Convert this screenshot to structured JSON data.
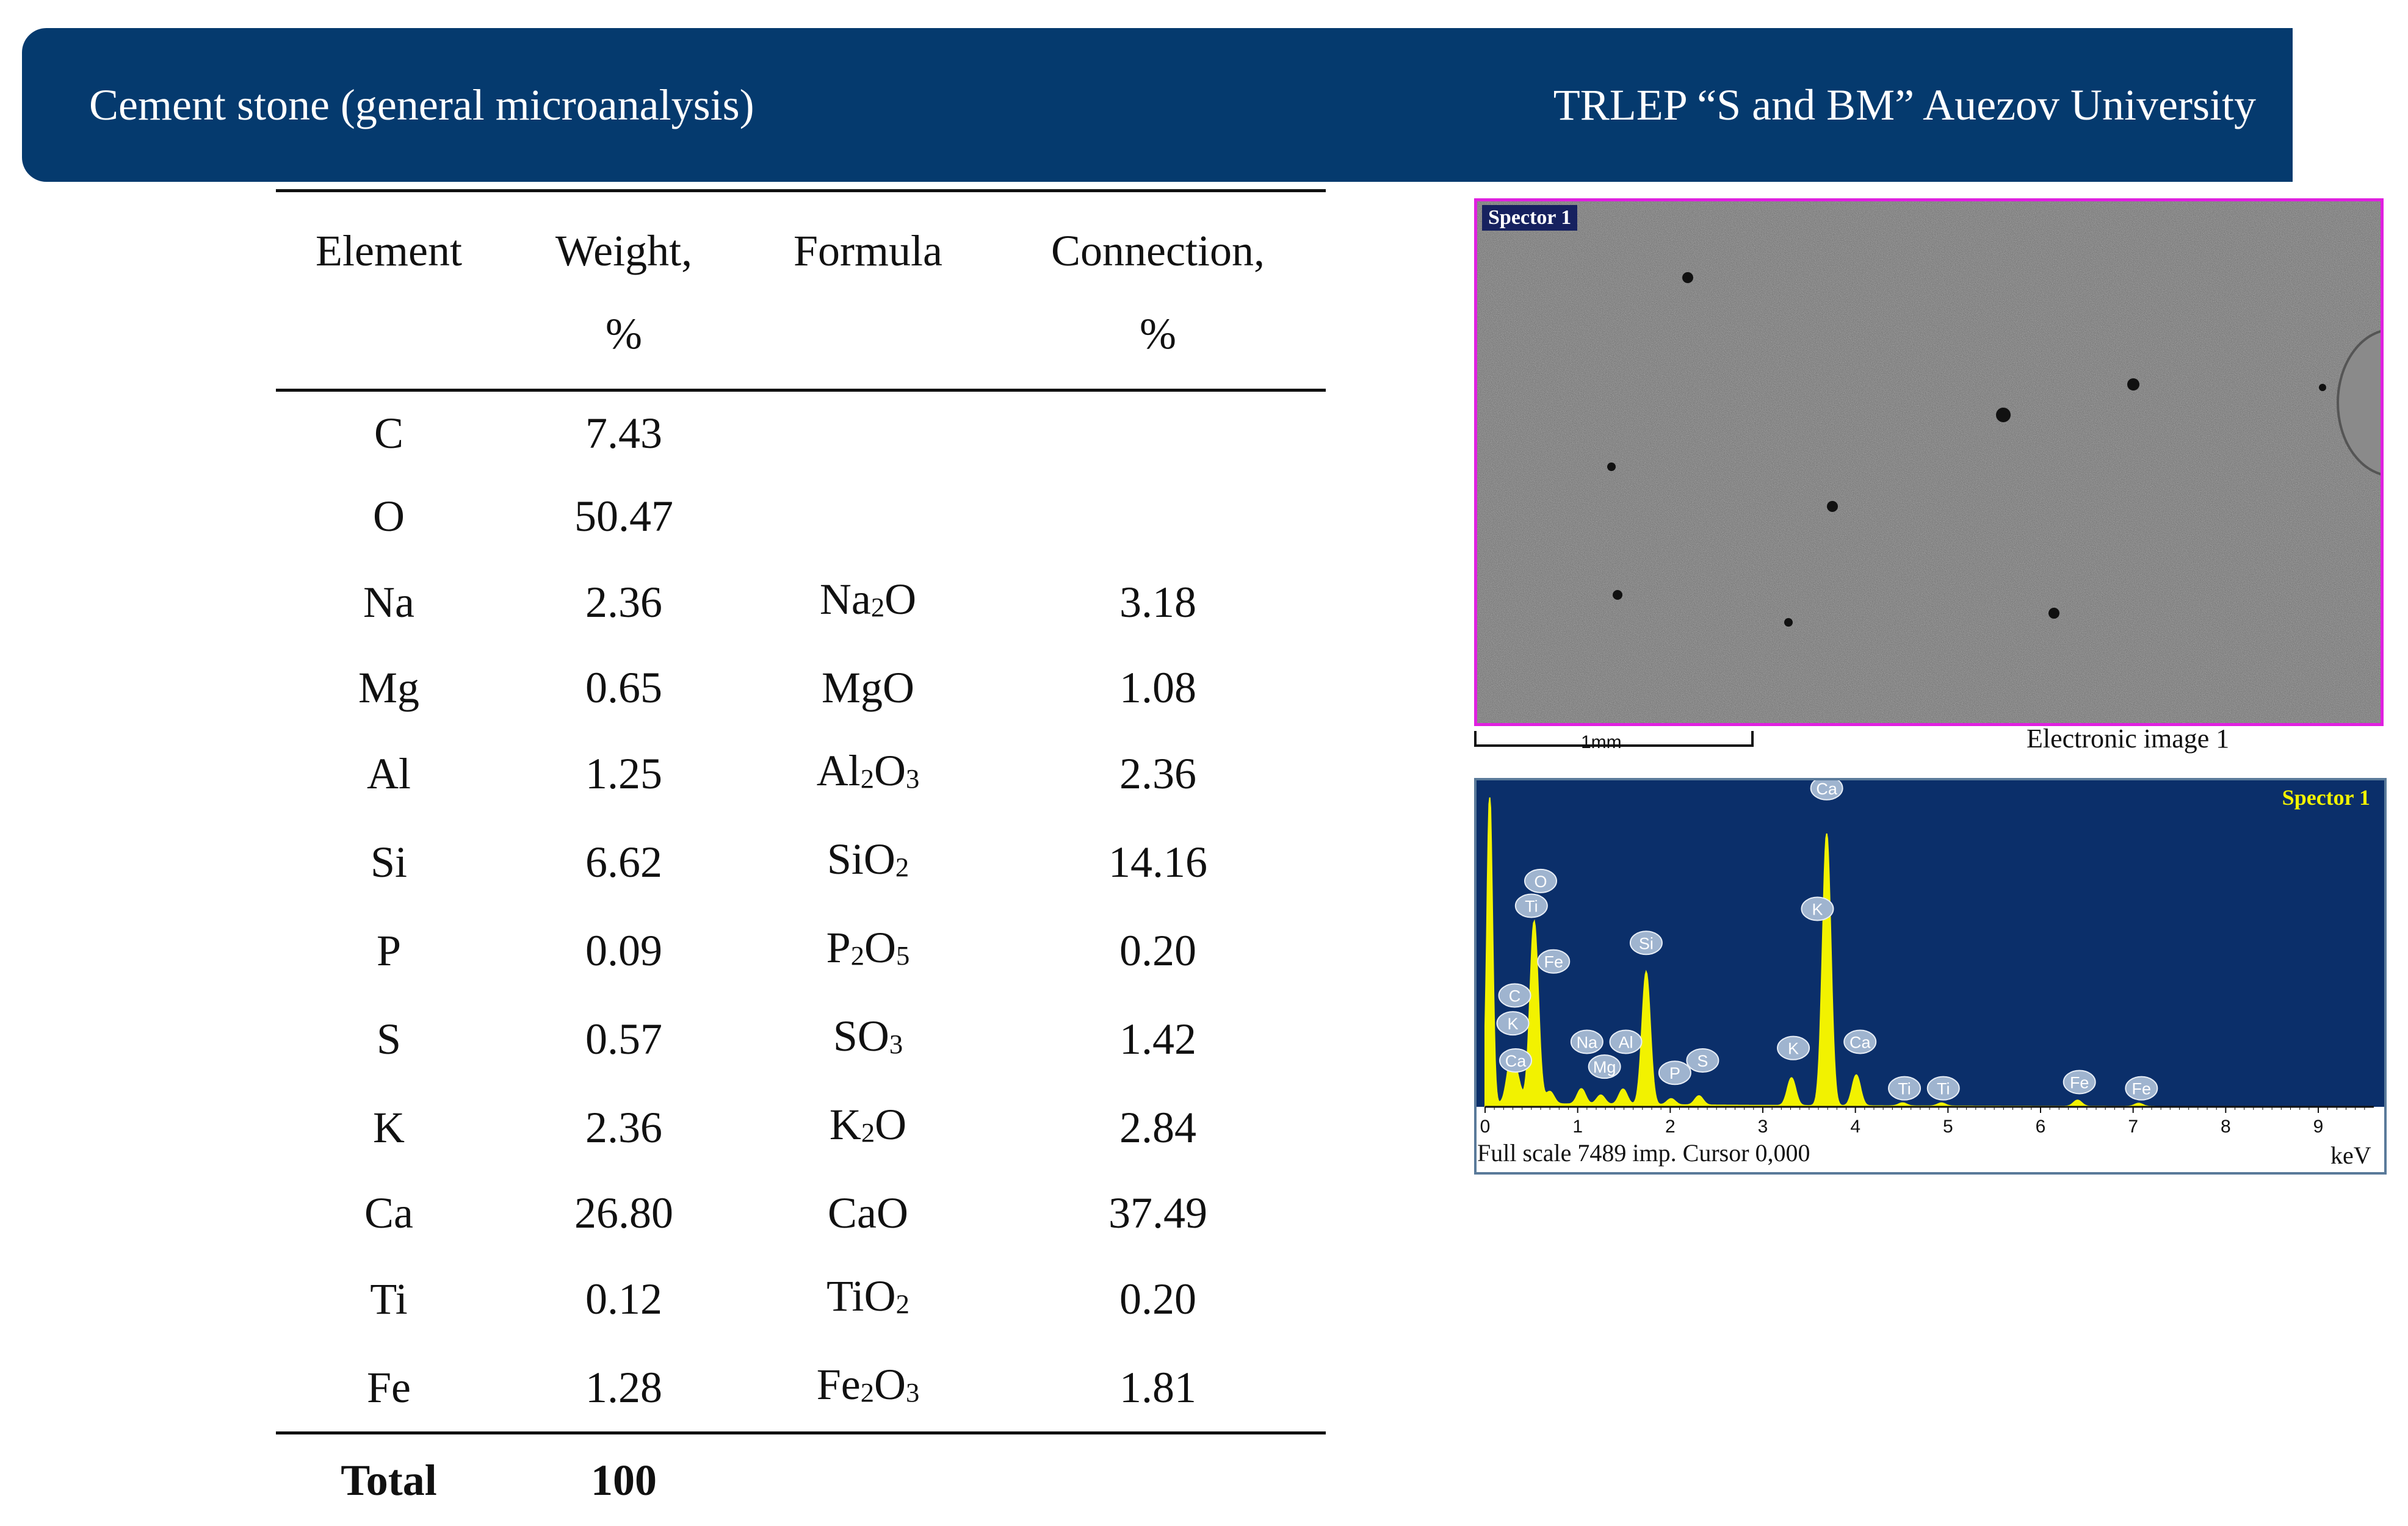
{
  "header": {
    "left_title": "Cement stone (general microanalysis)",
    "right_title": "TRLEP “S and BM” Auezov University"
  },
  "table": {
    "columns": [
      {
        "line1": "Element",
        "line2": ""
      },
      {
        "line1": "Weight,",
        "line2": "%"
      },
      {
        "line1": "Formula",
        "line2": ""
      },
      {
        "line1": "Connection,",
        "line2": "%"
      }
    ],
    "rows": [
      {
        "element": "C",
        "weight": "7.43",
        "formula_parts": [],
        "connection": ""
      },
      {
        "element": "O",
        "weight": "50.47",
        "formula_parts": [],
        "connection": ""
      },
      {
        "element": "Na",
        "weight": "2.36",
        "formula_parts": [
          [
            "Na",
            false
          ],
          [
            "2",
            true
          ],
          [
            "O",
            false
          ]
        ],
        "connection": "3.18"
      },
      {
        "element": "Mg",
        "weight": "0.65",
        "formula_parts": [
          [
            "MgO",
            false
          ]
        ],
        "connection": "1.08"
      },
      {
        "element": "Al",
        "weight": "1.25",
        "formula_parts": [
          [
            "Al",
            false
          ],
          [
            "2",
            true
          ],
          [
            "O",
            false
          ],
          [
            "3",
            true
          ]
        ],
        "connection": "2.36"
      },
      {
        "element": "Si",
        "weight": "6.62",
        "formula_parts": [
          [
            "SiO",
            false
          ],
          [
            "2",
            true
          ]
        ],
        "connection": "14.16"
      },
      {
        "element": "P",
        "weight": "0.09",
        "formula_parts": [
          [
            "P",
            false
          ],
          [
            "2",
            true
          ],
          [
            "O",
            false
          ],
          [
            "5",
            true
          ]
        ],
        "connection": "0.20"
      },
      {
        "element": "S",
        "weight": "0.57",
        "formula_parts": [
          [
            "SO",
            false
          ],
          [
            "3",
            true
          ]
        ],
        "connection": "1.42"
      },
      {
        "element": "K",
        "weight": "2.36",
        "formula_parts": [
          [
            "K",
            false
          ],
          [
            "2",
            true
          ],
          [
            "O",
            false
          ]
        ],
        "connection": "2.84"
      },
      {
        "element": "Ca",
        "weight": "26.80",
        "formula_parts": [
          [
            "CaO",
            false
          ]
        ],
        "connection": "37.49"
      },
      {
        "element": "Ti",
        "weight": "0.12",
        "formula_parts": [
          [
            "TiO",
            false
          ],
          [
            "2",
            true
          ]
        ],
        "connection": "0.20"
      },
      {
        "element": "Fe",
        "weight": "1.28",
        "formula_parts": [
          [
            "Fe",
            false
          ],
          [
            "2",
            true
          ],
          [
            "O",
            false
          ],
          [
            "3",
            true
          ]
        ],
        "connection": "1.81"
      }
    ],
    "total": {
      "label": "Total",
      "weight": "100"
    }
  },
  "micrograph": {
    "label": "Spector 1",
    "scale_label": "1mm",
    "caption": "Electronic image 1",
    "frame_color": "#e020e0"
  },
  "spectrum": {
    "label": "Spector 1",
    "caption": "Full scale 7489 imp. Cursor 0,000",
    "unit": "keV",
    "ticks": [
      "0",
      "1",
      "2",
      "3",
      "4",
      "5",
      "6",
      "7",
      "8",
      "9"
    ],
    "background_color": "#0b2f6a",
    "trace_color": "#f2f200",
    "peaks": [
      {
        "kev": 0.05,
        "height": 1.0
      },
      {
        "kev": 0.28,
        "height": 0.14
      },
      {
        "kev": 0.35,
        "height": 0.06
      },
      {
        "kev": 0.53,
        "height": 0.59
      },
      {
        "kev": 0.7,
        "height": 0.04
      },
      {
        "kev": 1.04,
        "height": 0.05
      },
      {
        "kev": 1.25,
        "height": 0.03
      },
      {
        "kev": 1.49,
        "height": 0.05
      },
      {
        "kev": 1.74,
        "height": 0.43
      },
      {
        "kev": 2.01,
        "height": 0.02
      },
      {
        "kev": 2.31,
        "height": 0.03
      },
      {
        "kev": 3.31,
        "height": 0.09
      },
      {
        "kev": 3.69,
        "height": 0.88
      },
      {
        "kev": 4.01,
        "height": 0.1
      },
      {
        "kev": 4.51,
        "height": 0.01
      },
      {
        "kev": 4.93,
        "height": 0.01
      },
      {
        "kev": 6.4,
        "height": 0.02
      },
      {
        "kev": 7.06,
        "height": 0.01
      }
    ],
    "annotations": [
      {
        "text": "Ca",
        "kev": 3.69,
        "level": 1.03
      },
      {
        "text": "O",
        "kev": 0.6,
        "level": 0.73
      },
      {
        "text": "Ti",
        "kev": 0.5,
        "level": 0.65
      },
      {
        "text": "Si",
        "kev": 1.74,
        "level": 0.53
      },
      {
        "text": "K",
        "kev": 3.59,
        "level": 0.64
      },
      {
        "text": "Fe",
        "kev": 0.74,
        "level": 0.47
      },
      {
        "text": "C",
        "kev": 0.32,
        "level": 0.36
      },
      {
        "text": "K",
        "kev": 0.3,
        "level": 0.27
      },
      {
        "text": "Ca",
        "kev": 0.33,
        "level": 0.15
      },
      {
        "text": "Na",
        "kev": 1.1,
        "level": 0.21
      },
      {
        "text": "Al",
        "kev": 1.52,
        "level": 0.21
      },
      {
        "text": "Mg",
        "kev": 1.29,
        "level": 0.13
      },
      {
        "text": "P",
        "kev": 2.05,
        "level": 0.11
      },
      {
        "text": "S",
        "kev": 2.35,
        "level": 0.15
      },
      {
        "text": "K",
        "kev": 3.33,
        "level": 0.19
      },
      {
        "text": "Ca",
        "kev": 4.05,
        "level": 0.21
      },
      {
        "text": "Ti",
        "kev": 4.53,
        "level": 0.06
      },
      {
        "text": "Ti",
        "kev": 4.95,
        "level": 0.06
      },
      {
        "text": "Fe",
        "kev": 6.42,
        "level": 0.08
      },
      {
        "text": "Fe",
        "kev": 7.09,
        "level": 0.06
      }
    ]
  }
}
